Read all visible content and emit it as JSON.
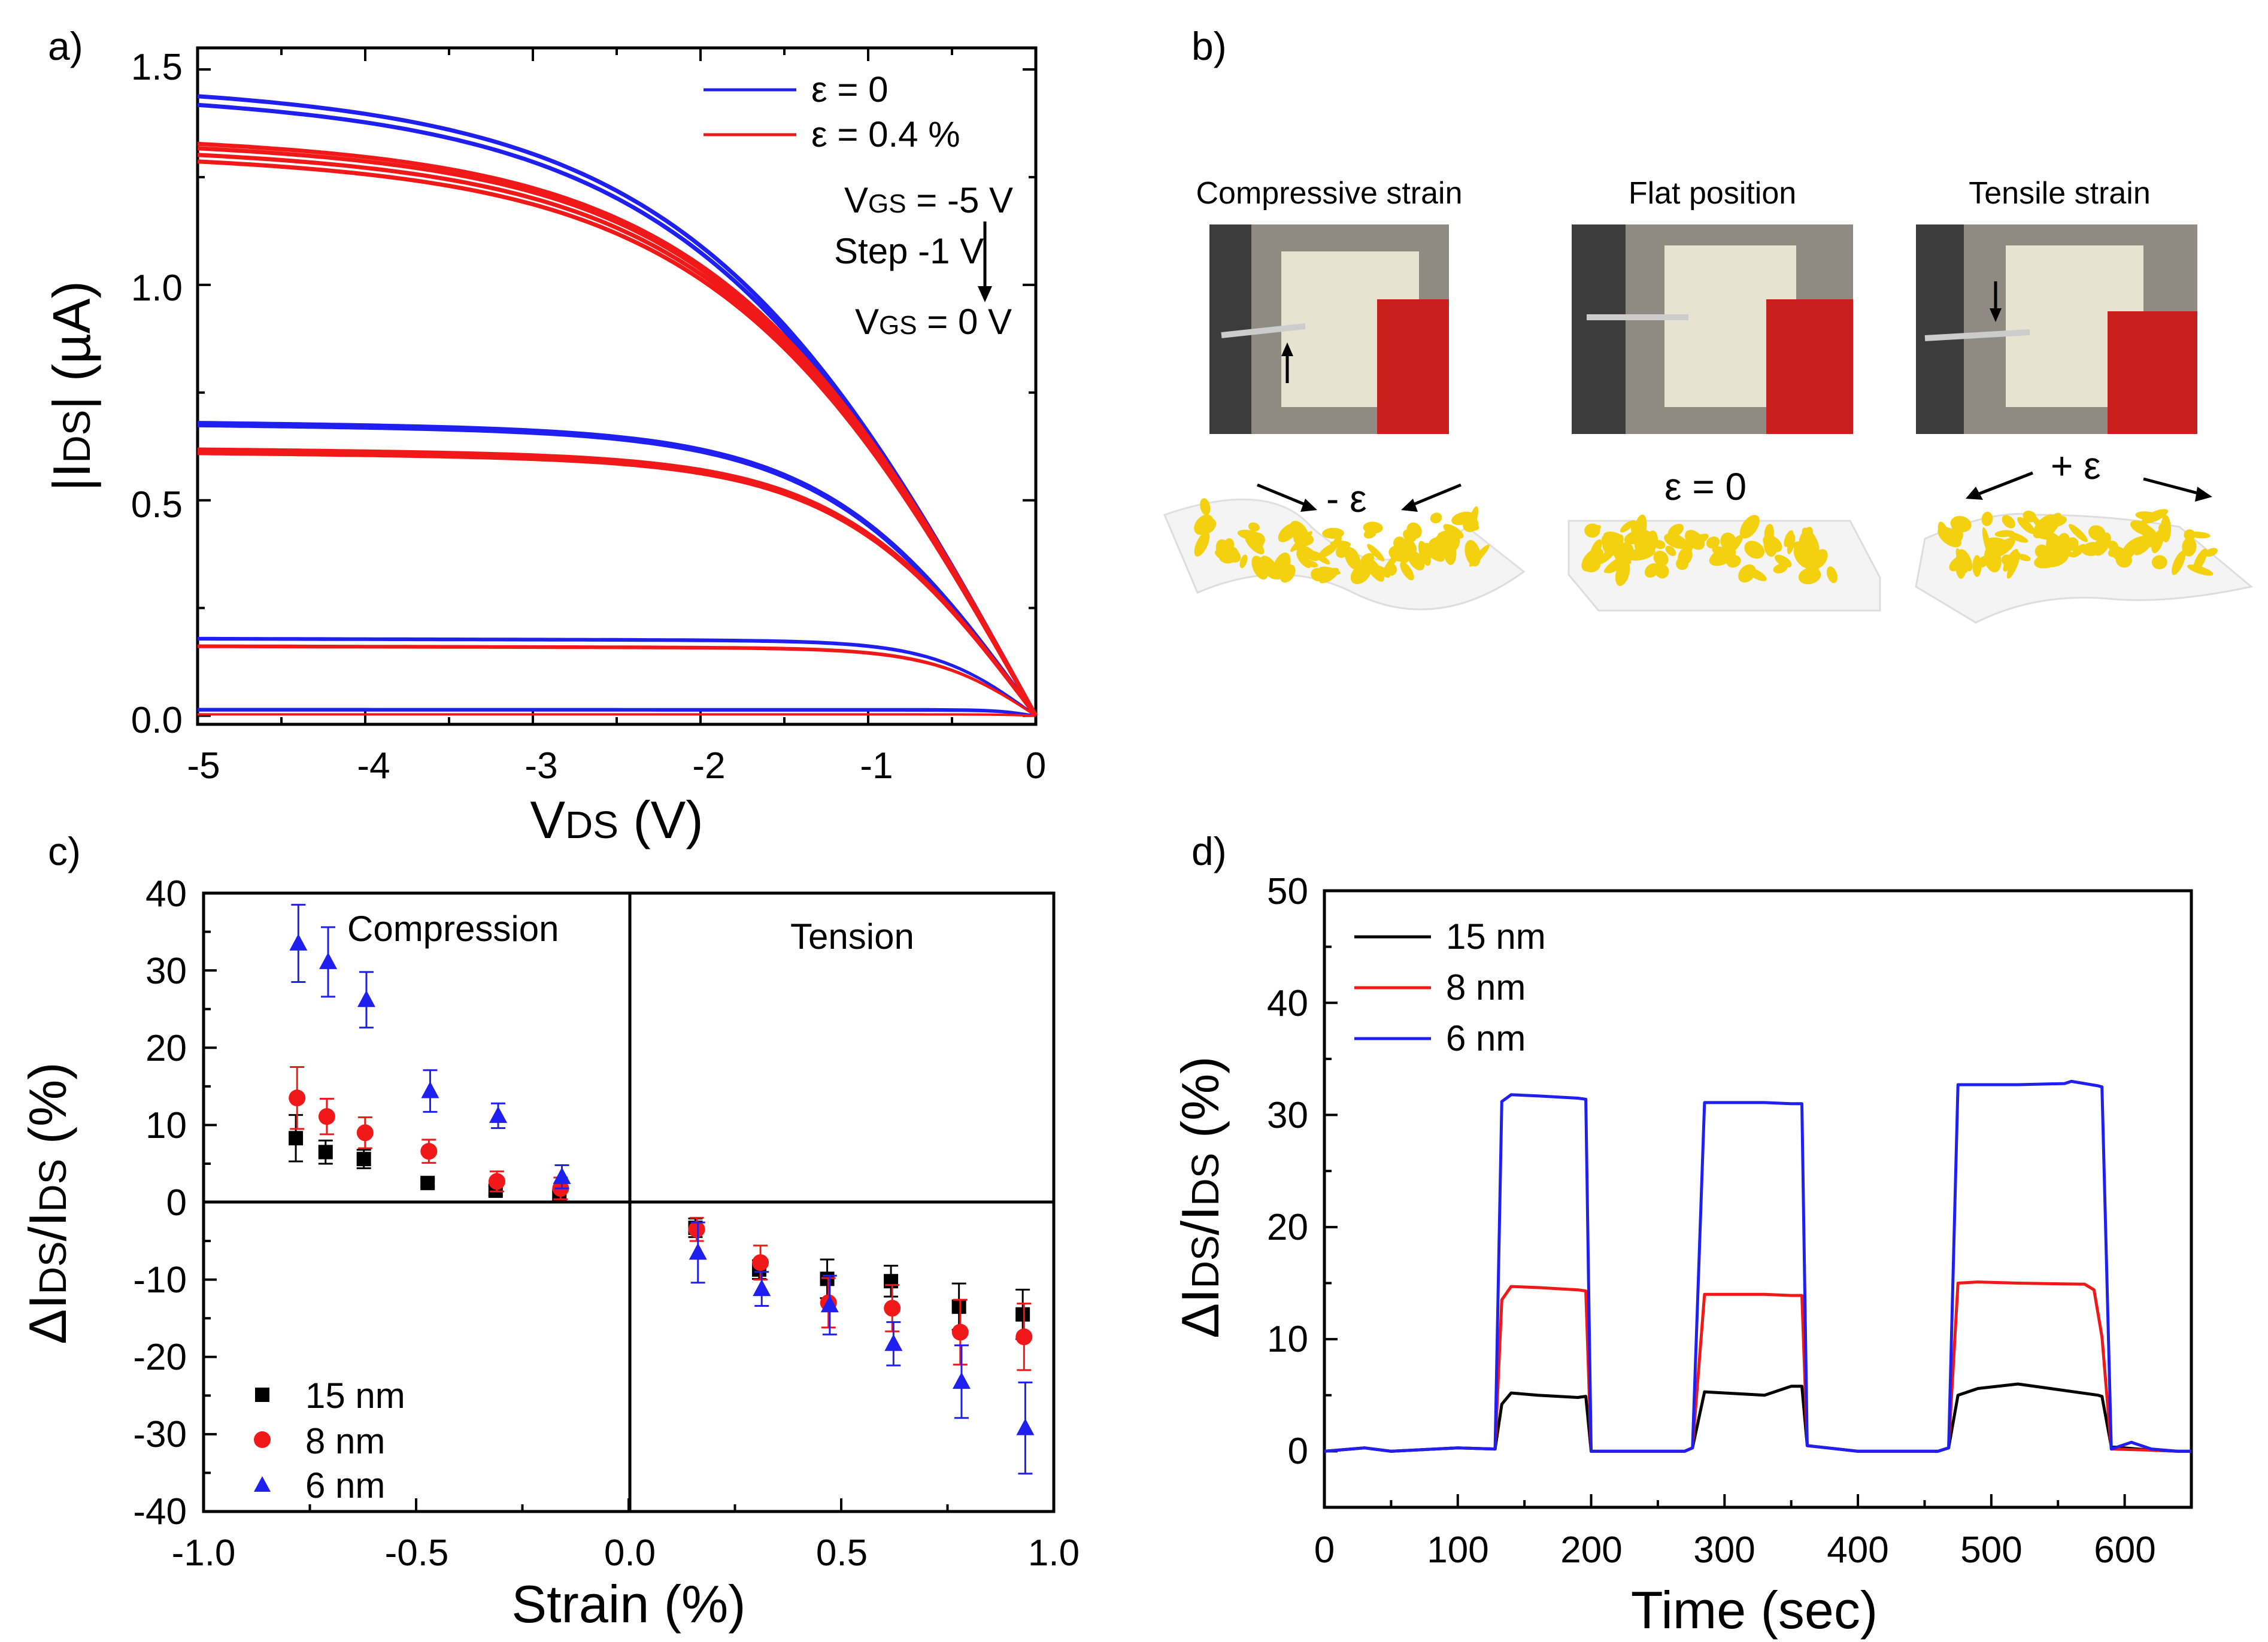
{
  "colors": {
    "blue": "#1f1ff0",
    "red": "#f01818",
    "black": "#000000",
    "gold": "#f3d10e",
    "slab": "#eeeeee"
  },
  "chart_data": [
    {
      "id": "a",
      "panel_label": "a)",
      "type": "line",
      "xlabel": "VDS (V)",
      "xlabel_main": "V",
      "xlabel_sub": "DS",
      "xlabel_rest": " (V)",
      "ylabel_pre": "|I",
      "ylabel_sub": "DS",
      "ylabel_rest": "| (µA)",
      "xlim": [
        -5,
        0
      ],
      "ylim": [
        -0.02,
        1.55
      ],
      "xticks": [
        "-5",
        "-4",
        "-3",
        "-2",
        "-1",
        "0"
      ],
      "yticks": [
        "0.0",
        "0.5",
        "1.0",
        "1.5"
      ],
      "legend": [
        {
          "name": "ε = 0",
          "color": "blue"
        },
        {
          "name": "ε = 0.4 %",
          "color": "red"
        }
      ],
      "annotation": {
        "line1_a": "V",
        "line1_sub": "GS",
        "line1_b": " = -5 V",
        "line2": "Step -1 V",
        "line3_a": "V",
        "line3_sub": "GS",
        "line3_b": " = 0 V"
      },
      "series": [
        {
          "name": "ε = 0",
          "color": "blue",
          "saturation": [
            1.415,
            1.395,
            0.66,
            0.655,
            0.175,
            0.172,
            0.015,
            0.012
          ]
        },
        {
          "name": "ε = 0.4 %",
          "color": "red",
          "saturation": [
            1.3,
            1.29,
            1.275,
            1.26,
            0.6,
            0.592,
            0.158,
            0.155,
            0.003
          ]
        }
      ]
    },
    {
      "id": "b",
      "panel_label": "b)",
      "type": "other",
      "photos": [
        {
          "caption": "Compressive strain",
          "strain_label": "- ε"
        },
        {
          "caption": "Flat position",
          "strain_label": "ε = 0"
        },
        {
          "caption": "Tensile strain",
          "strain_label": "+ ε"
        }
      ]
    },
    {
      "id": "c",
      "panel_label": "c)",
      "type": "scatter",
      "xlabel": "Strain (%)",
      "ylabel_pre": "ΔI",
      "ylabel_sub": "DS",
      "ylabel_mid": "/I",
      "ylabel_sub2": "DS",
      "ylabel_rest": " (%)",
      "xlim": [
        -1.0,
        1.0
      ],
      "ylim": [
        -40,
        40
      ],
      "xticks": [
        "-1.0",
        "-0.5",
        "0.0",
        "0.5",
        "1.0"
      ],
      "yticks": [
        "40",
        "30",
        "20",
        "10",
        "0",
        "-10",
        "-20",
        "-30",
        "-40"
      ],
      "region_labels": [
        "Compression",
        "Tension"
      ],
      "x": [
        -0.78,
        -0.71,
        -0.62,
        -0.47,
        -0.31,
        -0.16,
        0.16,
        0.31,
        0.47,
        0.62,
        0.78,
        0.93
      ],
      "series": [
        {
          "name": "15 nm",
          "color": "black",
          "marker": "square",
          "y": [
            8.3,
            6.5,
            5.6,
            2.5,
            1.5,
            0.8,
            -3.3,
            -8.7,
            -9.9,
            -10.2,
            -13.5,
            -14.5
          ],
          "err": [
            3.0,
            1.5,
            1.2,
            0.5,
            0.6,
            0.6,
            1.2,
            1.2,
            2.5,
            2.0,
            3.0,
            3.2
          ]
        },
        {
          "name": "8 nm",
          "color": "red",
          "marker": "circle",
          "y": [
            13.5,
            11.1,
            9.0,
            6.6,
            2.7,
            1.8,
            -3.5,
            -7.8,
            -13.0,
            -13.7,
            -16.8,
            -17.4
          ],
          "err": [
            4.0,
            2.3,
            2.0,
            1.5,
            1.3,
            1.4,
            1.5,
            2.2,
            3.2,
            3.0,
            4.2,
            4.3
          ]
        },
        {
          "name": "6 nm",
          "color": "blue",
          "marker": "triangle",
          "y": [
            33.5,
            31.1,
            26.2,
            14.4,
            11.2,
            3.3,
            -6.5,
            -11.2,
            -13.3,
            -18.3,
            -23.2,
            -29.2
          ],
          "err": [
            5.0,
            4.5,
            3.6,
            2.7,
            1.6,
            1.5,
            3.9,
            2.2,
            3.8,
            2.8,
            4.7,
            5.9
          ]
        }
      ]
    },
    {
      "id": "d",
      "panel_label": "d)",
      "type": "line",
      "xlabel": "Time (sec)",
      "ylabel_pre": "ΔI",
      "ylabel_sub": "DS",
      "ylabel_mid": "/I",
      "ylabel_sub2": "DS",
      "ylabel_rest": " (%)",
      "xlim": [
        0,
        650
      ],
      "ylim": [
        -5,
        50
      ],
      "xticks": [
        "0",
        "100",
        "200",
        "300",
        "400",
        "500",
        "600"
      ],
      "yticks": [
        "0",
        "10",
        "20",
        "30",
        "40",
        "50"
      ],
      "series": [
        {
          "name": "15 nm",
          "color": "black",
          "x": [
            0,
            30,
            50,
            100,
            128,
            133,
            140,
            160,
            190,
            196,
            200,
            270,
            276,
            285,
            300,
            330,
            350,
            358,
            362,
            400,
            460,
            468,
            475,
            490,
            520,
            580,
            583,
            590,
            620,
            640,
            650
          ],
          "y": [
            0,
            0.3,
            0,
            0.3,
            0.2,
            4.2,
            5.2,
            5.0,
            4.8,
            4.9,
            0,
            0,
            0.3,
            5.3,
            5.2,
            5.0,
            5.8,
            5.8,
            0.5,
            0,
            0,
            0.3,
            5.0,
            5.6,
            6.0,
            5.0,
            4.9,
            0.4,
            0.1,
            0,
            0
          ]
        },
        {
          "name": "8 nm",
          "color": "red",
          "x": [
            0,
            30,
            50,
            100,
            128,
            133,
            140,
            160,
            190,
            196,
            200,
            270,
            276,
            285,
            300,
            330,
            350,
            358,
            362,
            400,
            460,
            468,
            475,
            490,
            520,
            570,
            577,
            583,
            590,
            620,
            640,
            650
          ],
          "y": [
            0,
            0.3,
            0,
            0.3,
            0.2,
            13.5,
            14.7,
            14.6,
            14.4,
            14.3,
            0,
            0,
            0.3,
            14.0,
            14.0,
            14.0,
            13.9,
            13.9,
            0.5,
            0,
            0,
            0.3,
            15.0,
            15.1,
            15.0,
            14.9,
            14.4,
            10.2,
            0.2,
            0.1,
            0,
            0
          ]
        },
        {
          "name": "6 nm",
          "color": "blue",
          "x": [
            0,
            30,
            50,
            100,
            128,
            133,
            140,
            160,
            190,
            196,
            200,
            270,
            276,
            285,
            300,
            330,
            350,
            358,
            362,
            400,
            460,
            468,
            475,
            490,
            520,
            555,
            560,
            580,
            583,
            590,
            605,
            620,
            640,
            650
          ],
          "y": [
            0,
            0.3,
            0,
            0.3,
            0.2,
            31.2,
            31.8,
            31.7,
            31.5,
            31.4,
            0,
            0,
            0.3,
            31.1,
            31.1,
            31.1,
            31.0,
            31.0,
            0.5,
            0,
            0,
            0.3,
            32.7,
            32.7,
            32.7,
            32.8,
            33.0,
            32.6,
            32.5,
            0.2,
            0.8,
            0.2,
            0,
            0
          ]
        }
      ]
    }
  ]
}
